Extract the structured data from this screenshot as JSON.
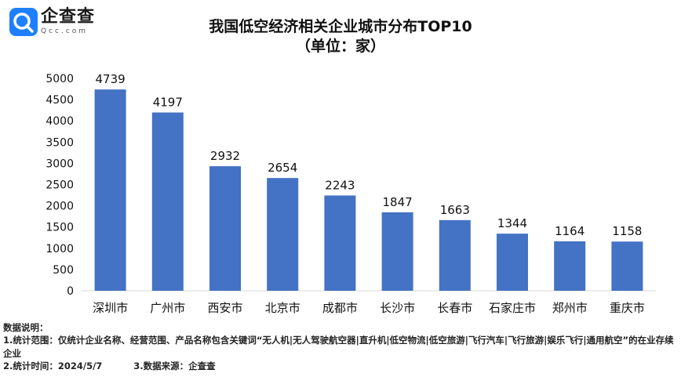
{
  "brand": {
    "name_cn": "企查查",
    "name_en": "Qcc.com",
    "color": "#1E80FF"
  },
  "title_line1": "我国低空经济相关企业城市分布TOP10",
  "title_line2": "（单位：家）",
  "chart_data": {
    "type": "bar",
    "title": "我国低空经济相关企业城市分布TOP10",
    "subtitle": "（单位：家）",
    "categories": [
      "深圳市",
      "广州市",
      "西安市",
      "北京市",
      "成都市",
      "长沙市",
      "长春市",
      "石家庄市",
      "郑州市",
      "重庆市"
    ],
    "values": [
      4739,
      4197,
      2932,
      2654,
      2243,
      1847,
      1663,
      1344,
      1164,
      1158
    ],
    "ylim": [
      0,
      5000
    ],
    "yticks": [
      0,
      500,
      1000,
      1500,
      2000,
      2500,
      3000,
      3500,
      4000,
      4500,
      5000
    ],
    "xlabel": "",
    "ylabel": "",
    "grid": false,
    "bar_color": "#4472C4"
  },
  "notes": {
    "heading": "数据说明：",
    "line1": "1.统计范围：仅统计企业名称、经营范围、产品名称包含关键词“无人机|无人驾驶航空器|直升机|低空物流|低空旅游|飞行汽车|飞行旅游|娱乐飞行|通用航空”的在业存续企业",
    "time": "2.统计时间：2024/5/7",
    "source": "3.数据来源：企查查"
  }
}
